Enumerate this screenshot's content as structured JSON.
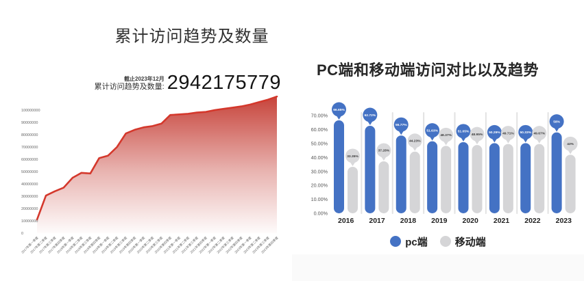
{
  "left_panel": {
    "title": "累计访问趋势及数量",
    "annotation": {
      "date_note": "截止2023年12月",
      "label": "累计访问趋势及数量:",
      "value": "2942175779"
    }
  },
  "right_panel": {
    "title": "PC端和移动端访问对比以及趋势",
    "legend": [
      {
        "label": "pc端",
        "color": "#4472c4"
      },
      {
        "label": "移动端",
        "color": "#d5d5d7"
      }
    ]
  },
  "colors": {
    "red_line": "#d4382c",
    "red_fill": "#c43a31",
    "pc_blue": "#4472c4",
    "mobile_gray": "#d5d5d7",
    "mobile_balloon": "#d9d9db",
    "separator": "#e2e2e2",
    "axis_text": "#666666",
    "year_text": "#222222"
  },
  "chart_data": [
    {
      "type": "area",
      "title": "累计访问趋势及数量",
      "x": [
        "2017年第一季度",
        "2017年第二季度",
        "2017年第三季度",
        "2017年第四季度",
        "2018年第一季度",
        "2018年第二季度",
        "2018年第三季度",
        "2018年第四季度",
        "2019年第一季度",
        "2019年第二季度",
        "2019年第三季度",
        "2019年第四季度",
        "2020年第一季度",
        "2020年第二季度",
        "2020年第三季度",
        "2020年第四季度",
        "2021年第一季度",
        "2021年第二季度",
        "2021年第三季度",
        "2021年第四季度",
        "2022年第一季度",
        "2022年第二季度",
        "2022年第三季度",
        "2022年第四季度",
        "2023年第一季度",
        "2023年第二季度",
        "2023年第三季度",
        "2023年第四季度"
      ],
      "values": [
        11000000,
        30500000,
        34000000,
        37000000,
        45000000,
        49000000,
        48500000,
        61000000,
        63000000,
        70000000,
        81000000,
        84000000,
        86000000,
        87000000,
        89000000,
        96000000,
        96500000,
        97000000,
        98000000,
        98500000,
        100000000,
        101000000,
        102000000,
        103000000,
        104500000,
        106500000,
        108500000,
        111000000
      ],
      "yticks": [
        "0",
        "10000000",
        "20000000",
        "30000000",
        "40000000",
        "50000000",
        "60000000",
        "70000000",
        "80000000",
        "90000000",
        "100000000"
      ],
      "ytick_step": 10000000,
      "ylim": [
        0,
        111000000
      ],
      "xlabel": "",
      "ylabel": "",
      "grid": false,
      "legend_position": "none",
      "annotation_total": "2942175779",
      "annotation_asof": "截止2023年12月"
    },
    {
      "type": "bar",
      "subtype": "lollipop",
      "title": "PC端和移动端访问对比以及趋势",
      "categories": [
        "2016",
        "2017",
        "2018",
        "2019",
        "2020",
        "2021",
        "2022",
        "2023"
      ],
      "series": [
        {
          "name": "pc端",
          "color": "#4472c4",
          "values": [
            66.65,
            62.72,
            55.77,
            51.63,
            51.05,
            50.29,
            50.33,
            58
          ],
          "labels": [
            "66.65%",
            "62.72%",
            "55.77%",
            "51.63%",
            "51.05%",
            "50.29%",
            "50.33%",
            "58%"
          ]
        },
        {
          "name": "移动端",
          "color": "#d5d5d7",
          "values": [
            33.35,
            37.28,
            44.23,
            48.37,
            48.95,
            49.71,
            49.67,
            42
          ],
          "labels": [
            "33.35%",
            "37.28%",
            "44.23%",
            "48.37%",
            "48.95%",
            "49.71%",
            "49.67%",
            "42%"
          ]
        }
      ],
      "yticks": [
        "0.00%",
        "10.00%",
        "20.00%",
        "30.00%",
        "40.00%",
        "50.00%",
        "60.00%",
        "70.00%"
      ],
      "ylim": [
        0,
        70
      ],
      "xlabel": "",
      "ylabel": "",
      "grid": false,
      "legend_position": "bottom"
    }
  ]
}
